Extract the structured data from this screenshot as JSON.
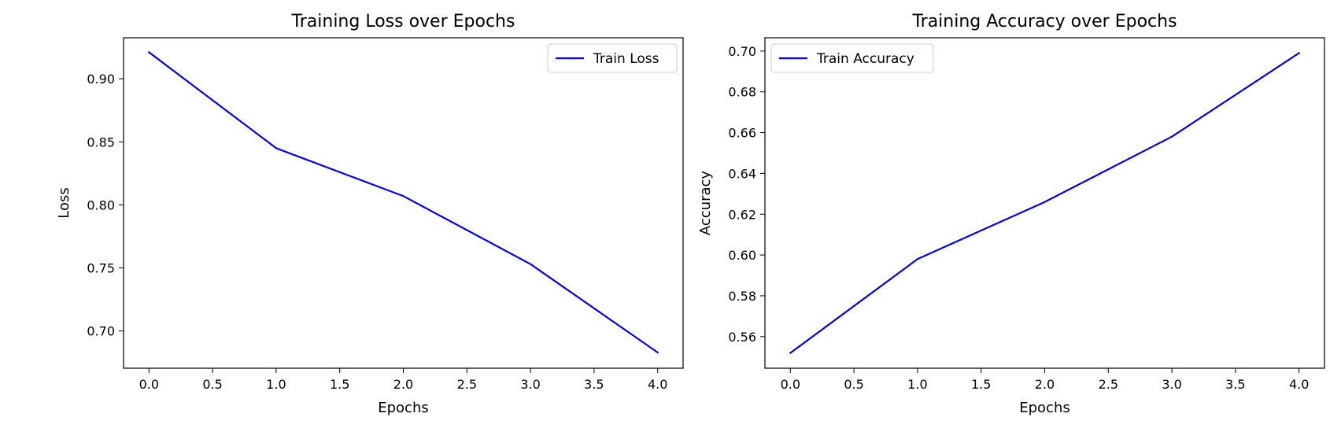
{
  "chart_data": [
    {
      "type": "line",
      "title": "Training Loss over Epochs",
      "xlabel": "Epochs",
      "ylabel": "Loss",
      "x": [
        0,
        1,
        2,
        3,
        4
      ],
      "xlim": [
        -0.2,
        4.2
      ],
      "ylim": [
        0.6705,
        0.9325
      ],
      "xticks": [
        0.0,
        0.5,
        1.0,
        1.5,
        2.0,
        2.5,
        3.0,
        3.5,
        4.0
      ],
      "yticks": [
        0.7,
        0.75,
        0.8,
        0.85,
        0.9
      ],
      "grid": false,
      "legend_position": "top-right",
      "series": [
        {
          "name": "Train Loss",
          "color": "#0000ff",
          "values": [
            0.921,
            0.845,
            0.807,
            0.753,
            0.683
          ]
        }
      ]
    },
    {
      "type": "line",
      "title": "Training Accuracy over Epochs",
      "xlabel": "Epochs",
      "ylabel": "Accuracy",
      "x": [
        0,
        1,
        2,
        3,
        4
      ],
      "xlim": [
        -0.2,
        4.2
      ],
      "ylim": [
        0.5445,
        0.7065
      ],
      "xticks": [
        0.0,
        0.5,
        1.0,
        1.5,
        2.0,
        2.5,
        3.0,
        3.5,
        4.0
      ],
      "yticks": [
        0.56,
        0.58,
        0.6,
        0.62,
        0.64,
        0.66,
        0.68,
        0.7
      ],
      "grid": false,
      "legend_position": "top-left",
      "series": [
        {
          "name": "Train Accuracy",
          "color": "#0000ff",
          "values": [
            0.552,
            0.598,
            0.626,
            0.658,
            0.699
          ]
        }
      ]
    }
  ]
}
